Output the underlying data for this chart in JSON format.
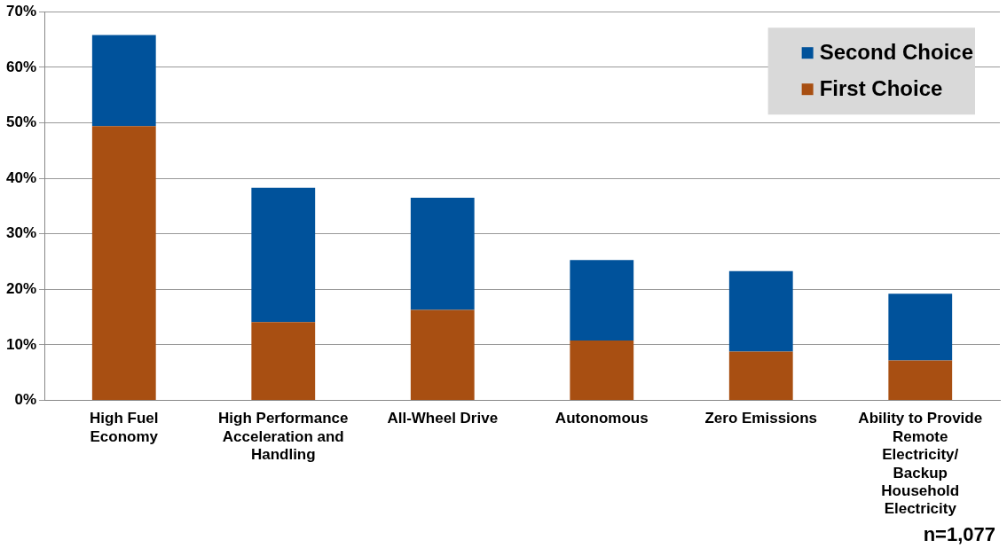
{
  "chart_data": {
    "type": "bar",
    "stacked": true,
    "categories": [
      "High Fuel Economy",
      "High Performance Acceleration and Handling",
      "All-Wheel Drive",
      "Autonomous",
      "Zero Emissions",
      "Ability to Provide Remote Electricity/ Backup Household Electricity"
    ],
    "series": [
      {
        "name": "First Choice",
        "color": "#a84f12",
        "values": [
          49.4,
          14.1,
          16.3,
          10.8,
          8.8,
          7.2
        ]
      },
      {
        "name": "Second Choice",
        "color": "#00529b",
        "values": [
          16.4,
          24.2,
          20.2,
          14.5,
          14.5,
          12.0
        ]
      }
    ],
    "ylim": [
      0,
      70
    ],
    "yticks": [
      {
        "value": 0,
        "label": "0%"
      },
      {
        "value": 10,
        "label": "10%"
      },
      {
        "value": 20,
        "label": "20%"
      },
      {
        "value": 30,
        "label": "30%"
      },
      {
        "value": 40,
        "label": "40%"
      },
      {
        "value": 50,
        "label": "50%"
      },
      {
        "value": 60,
        "label": "60%"
      },
      {
        "value": 70,
        "label": "70%"
      }
    ],
    "grid": "y",
    "legend": "top right",
    "annotations": [
      "n=1,077"
    ]
  }
}
